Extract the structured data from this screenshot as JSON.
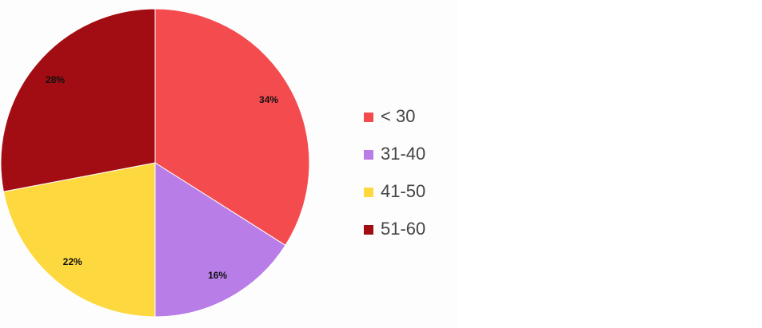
{
  "chart_data": {
    "type": "pie",
    "categories": [
      "< 30",
      "31-40",
      "41-50",
      "51-60"
    ],
    "values": [
      34,
      16,
      22,
      28
    ],
    "value_labels": [
      "34%",
      "16%",
      "22%",
      "28%"
    ],
    "colors": [
      "#f44b4f",
      "#b87de6",
      "#fdd93f",
      "#a10d12"
    ],
    "legend": "right"
  }
}
